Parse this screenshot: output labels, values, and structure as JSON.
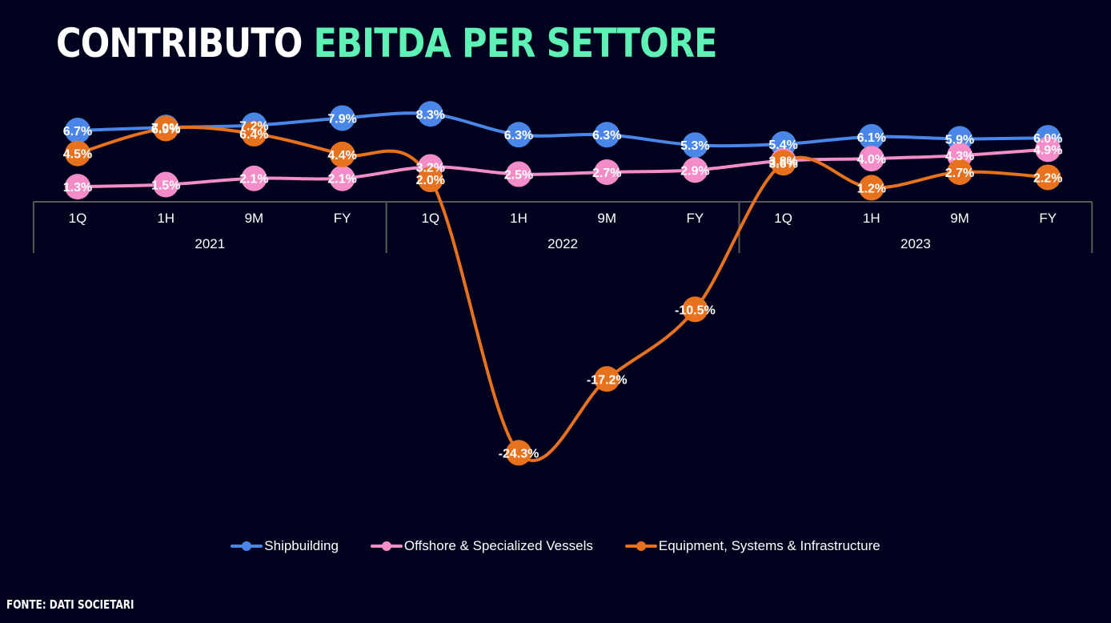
{
  "header": {
    "title_part1": "CONTRIBUTO",
    "title_part2": "EBITDA PER SETTORE"
  },
  "footer": {
    "source": "FONTE: DATI SOCIETARI"
  },
  "colors": {
    "background": "#01021d",
    "accent": "#5ef2b6",
    "axis": "#595959"
  },
  "chart_data": {
    "type": "line",
    "categories": [
      "1Q",
      "1H",
      "9M",
      "FY",
      "1Q",
      "1H",
      "9M",
      "FY",
      "1Q",
      "1H",
      "9M",
      "FY"
    ],
    "groups": [
      {
        "label": "2021",
        "count": 4
      },
      {
        "label": "2022",
        "count": 4
      },
      {
        "label": "2023",
        "count": 4
      }
    ],
    "ylim": [
      -27,
      10
    ],
    "grid": false,
    "legend_position": "bottom",
    "value_suffix": "%",
    "series": [
      {
        "name": "Shipbuilding",
        "color": "#4a86e8",
        "values": [
          6.7,
          7.0,
          7.2,
          7.9,
          8.3,
          6.3,
          6.3,
          5.3,
          5.4,
          6.1,
          5.9,
          6.0
        ]
      },
      {
        "name": "Offshore & Specialized Vessels",
        "color": "#f48cc8",
        "values": [
          1.3,
          1.5,
          2.1,
          2.1,
          3.2,
          2.5,
          2.7,
          2.9,
          3.8,
          4.0,
          4.3,
          4.9
        ]
      },
      {
        "name": "Equipment, Systems & Infrastructure",
        "color": "#e8711e",
        "values": [
          4.5,
          6.9,
          6.4,
          4.4,
          2.0,
          -24.3,
          -17.2,
          -10.5,
          3.6,
          1.2,
          2.7,
          2.2
        ]
      }
    ]
  }
}
